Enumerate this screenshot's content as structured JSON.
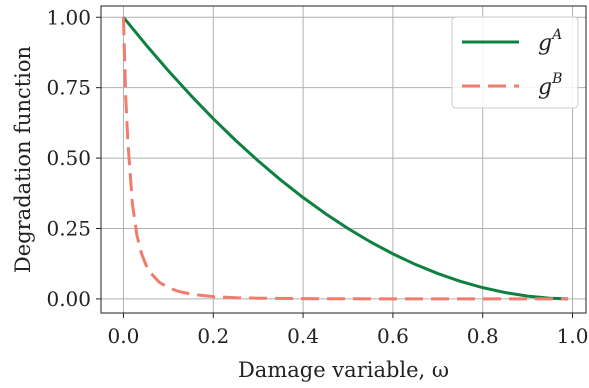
{
  "chart_data": {
    "type": "line",
    "xlabel": "Damage variable, ω",
    "ylabel": "Degradation function",
    "xlim": [
      -0.05,
      1.03
    ],
    "ylim": [
      -0.05,
      1.04
    ],
    "xticks": [
      0.0,
      0.2,
      0.4,
      0.6,
      0.8,
      1.0
    ],
    "xtick_labels": [
      "0.0",
      "0.2",
      "0.4",
      "0.6",
      "0.8",
      "1.0"
    ],
    "yticks": [
      0.0,
      0.25,
      0.5,
      0.75,
      1.0
    ],
    "ytick_labels": [
      "0.00",
      "0.25",
      "0.50",
      "0.75",
      "1.00"
    ],
    "grid": true,
    "legend_position": "top-right",
    "series": [
      {
        "name": "gA",
        "legend_base": "g",
        "legend_sup": "A",
        "color": "#0e8040",
        "dash": "solid",
        "x": [
          0.0,
          0.05,
          0.1,
          0.15,
          0.2,
          0.25,
          0.3,
          0.35,
          0.4,
          0.45,
          0.5,
          0.55,
          0.6,
          0.65,
          0.7,
          0.75,
          0.8,
          0.85,
          0.9,
          0.95,
          0.99
        ],
        "y": [
          1.0,
          0.9025,
          0.81,
          0.7225,
          0.64,
          0.5625,
          0.49,
          0.4225,
          0.36,
          0.3025,
          0.25,
          0.2025,
          0.16,
          0.1225,
          0.09,
          0.0625,
          0.04,
          0.0225,
          0.01,
          0.0025,
          0.0001
        ]
      },
      {
        "name": "gB",
        "legend_base": "g",
        "legend_sup": "B",
        "color": "#f07c6c",
        "dash": "dashed",
        "x": [
          0.0,
          0.005,
          0.01,
          0.02,
          0.03,
          0.04,
          0.05,
          0.06,
          0.08,
          0.1,
          0.12,
          0.15,
          0.2,
          0.25,
          0.3,
          0.4,
          0.5,
          0.6,
          0.7,
          0.8,
          0.9,
          0.99
        ],
        "y": [
          1.0,
          0.718,
          0.553,
          0.336,
          0.226,
          0.162,
          0.121,
          0.093,
          0.059,
          0.04,
          0.028,
          0.017,
          0.008,
          0.004,
          0.0025,
          0.001,
          0.0005,
          0.0002,
          0.0001,
          3e-05,
          1e-05,
          0.0
        ]
      }
    ]
  }
}
